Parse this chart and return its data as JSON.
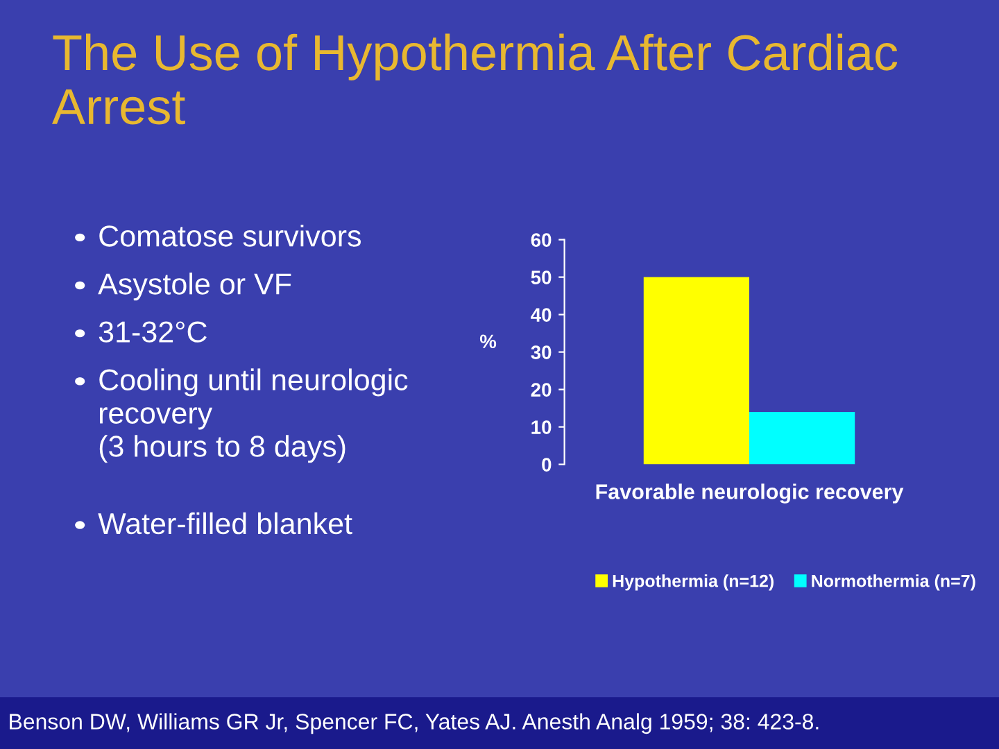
{
  "chart_data": {
    "type": "bar",
    "title": "The Use of Hypothermia After Cardiac Arrest",
    "ylabel": "%",
    "categories": [
      "Favorable neurologic recovery"
    ],
    "series": [
      {
        "name": "Hypothermia (n=12)",
        "color": "#ffff00",
        "values": [
          50
        ]
      },
      {
        "name": "Normothermia (n=7)",
        "color": "#00ffff",
        "values": [
          14
        ]
      }
    ],
    "ylim": [
      0,
      60
    ],
    "yticks": [
      0,
      10,
      20,
      30,
      40,
      50,
      60
    ],
    "grid": false,
    "legend": "bottom",
    "annotations": [
      "Comatose survivors",
      "Asystole or VF",
      "31-32°C",
      "Cooling until neurologic\nrecovery\n(3 hours to 8 days)",
      "Water-filled blanket",
      "Benson DW, Williams GR Jr, Spencer FC, Yates AJ. Anesth Analg 1959; 38: 423-8."
    ]
  }
}
